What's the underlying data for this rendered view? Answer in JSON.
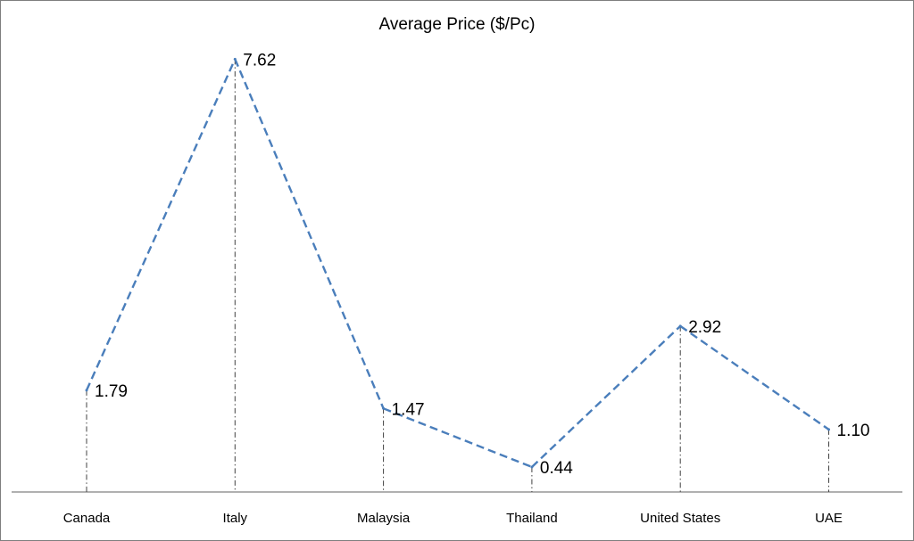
{
  "chart_data": {
    "type": "line",
    "title": "Average Price ($/Pc)",
    "xlabel": "",
    "ylabel": "",
    "categories": [
      "Canada",
      "Italy",
      "Malaysia",
      "Thailand",
      "United States",
      "UAE"
    ],
    "series": [
      {
        "values": [
          1.79,
          7.62,
          1.47,
          0.44,
          2.92,
          1.1
        ],
        "labels": [
          "1.79",
          "7.62",
          "1.47",
          "0.44",
          "2.92",
          "1.10"
        ],
        "color": "#4a7ebb",
        "line_style": "dashed"
      }
    ],
    "ylim": [
      0,
      8.3
    ],
    "drop_lines": true,
    "drop_line_color": "#404040",
    "axis_color": "#808080",
    "grid": false,
    "legend": "none"
  }
}
